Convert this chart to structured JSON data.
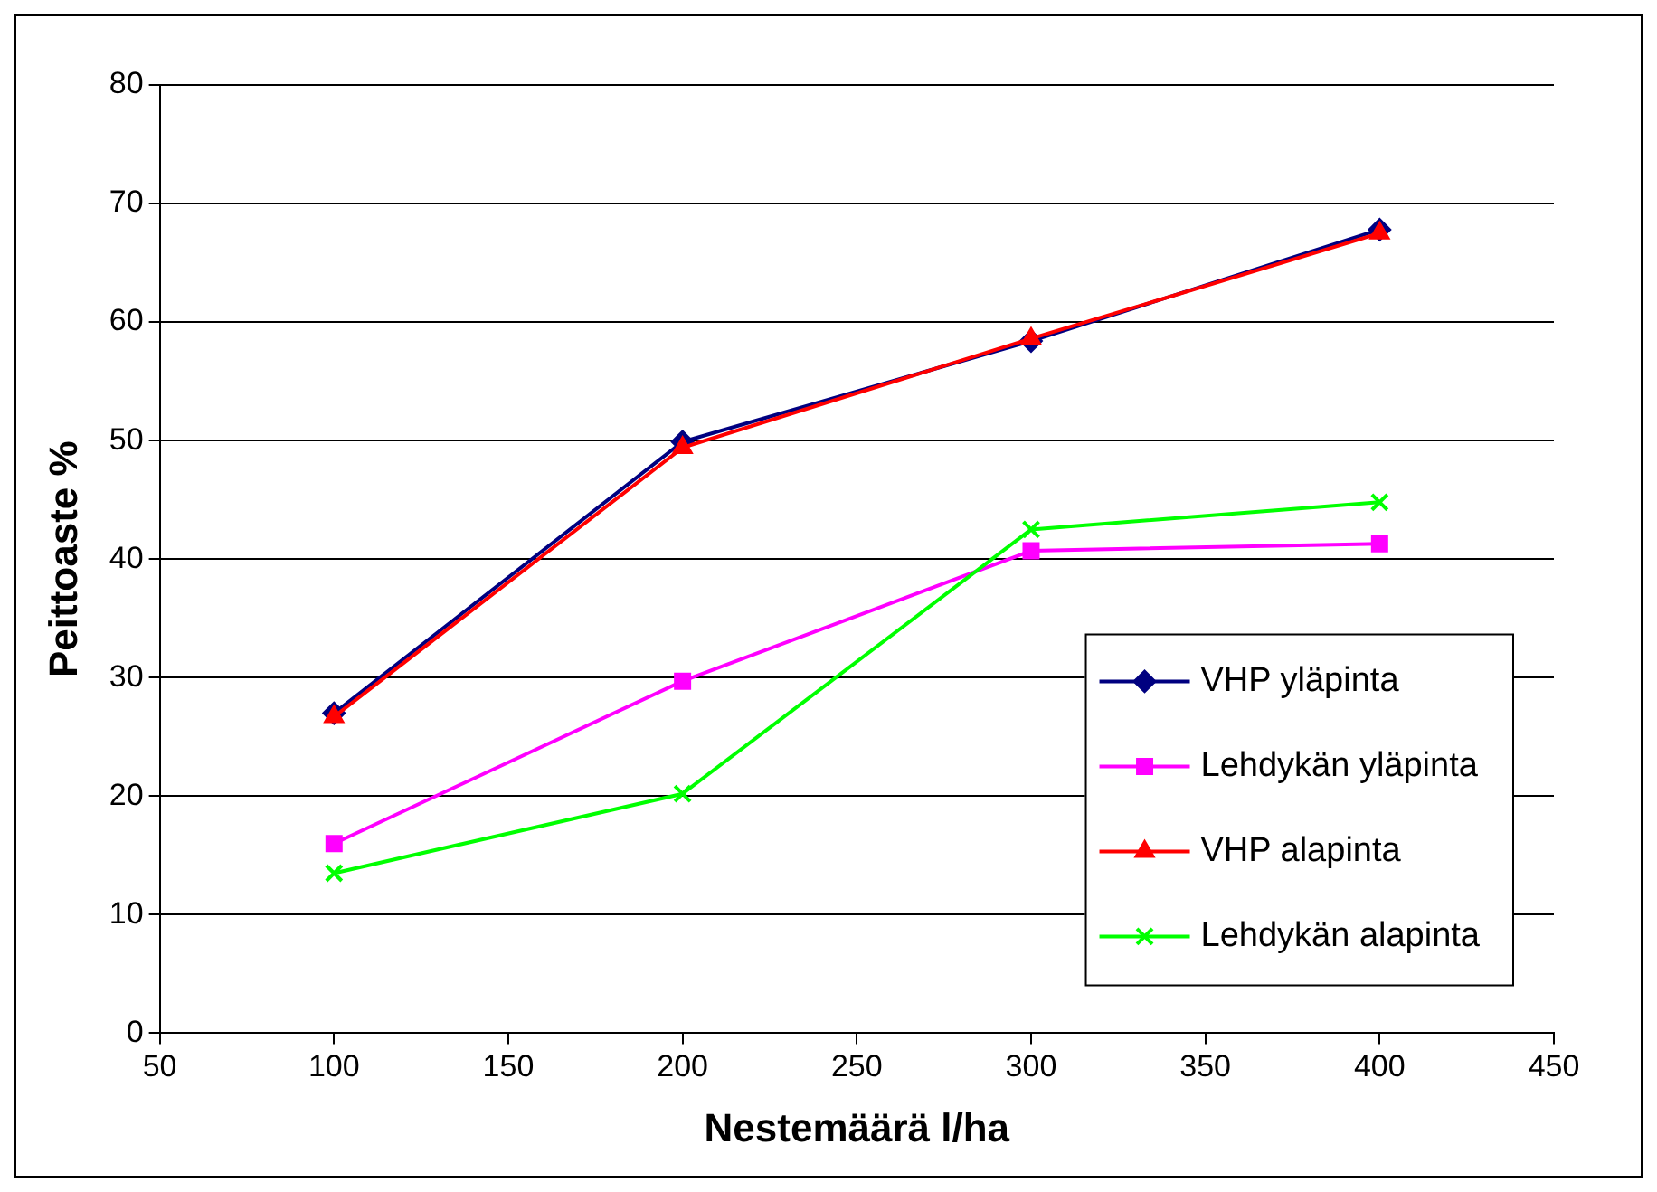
{
  "chart_data": {
    "type": "line",
    "xlabel": "Nestemäärä l/ha",
    "ylabel": "Peittoaste %",
    "x": [
      100,
      200,
      300,
      400
    ],
    "xlim": [
      50,
      450
    ],
    "xticks": [
      50,
      100,
      150,
      200,
      250,
      300,
      350,
      400,
      450
    ],
    "ylim": [
      0,
      80
    ],
    "yticks": [
      0,
      10,
      20,
      30,
      40,
      50,
      60,
      70,
      80
    ],
    "grid": "y",
    "legend": "bottom right",
    "line_style": "solid",
    "series": [
      {
        "name": "VHP yläpinta",
        "color": "#000080",
        "marker": "diamond",
        "values": [
          27,
          49.9,
          58.4,
          67.8
        ]
      },
      {
        "name": "Lehdykän yläpinta",
        "color": "#ff00ff",
        "marker": "square",
        "values": [
          16,
          29.7,
          40.7,
          41.3
        ]
      },
      {
        "name": "VHP alapinta",
        "color": "#ff0000",
        "marker": "triangle",
        "values": [
          26.7,
          49.4,
          58.6,
          67.5
        ]
      },
      {
        "name": "Lehdykän alapinta",
        "color": "#00ff00",
        "marker": "cross",
        "values": [
          13.5,
          20.2,
          42.5,
          44.8
        ]
      }
    ]
  }
}
